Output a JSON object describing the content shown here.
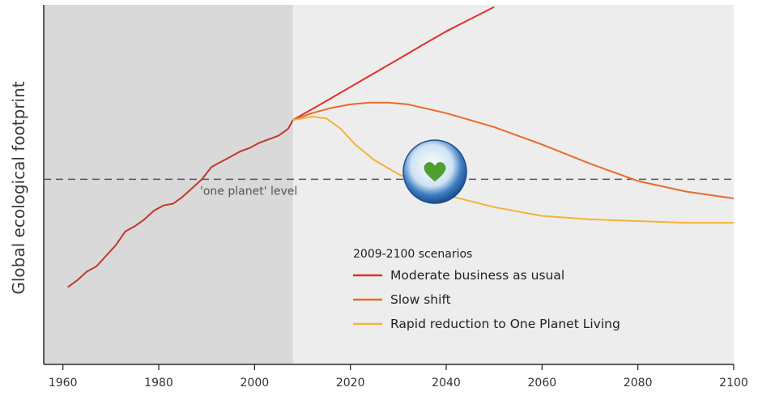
{
  "chart_data": {
    "type": "line",
    "title": "",
    "xlabel": "",
    "ylabel": "Global ecological footprint",
    "xlim": [
      1956,
      2100
    ],
    "ylim": [
      0,
      100
    ],
    "x_ticks": [
      1960,
      1980,
      2000,
      2020,
      2040,
      2060,
      2080,
      2100
    ],
    "x_tick_labels": [
      "1960",
      "1980",
      "2000",
      "2020",
      "2040",
      "2060",
      "2080",
      "2100"
    ],
    "historical_shaded_range": [
      1956,
      2008
    ],
    "colors": {
      "historical_shade": "#d9d9d9",
      "projection_background": "#ededed",
      "history_line": "#c0392b",
      "moderate": "#e03127",
      "slow_shift": "#ea6a2a",
      "rapid": "#f5b335",
      "threshold": "#555555"
    },
    "threshold": {
      "label": "'one planet' level",
      "value": 52
    },
    "history": {
      "x": [
        1961,
        1963,
        1965,
        1967,
        1969,
        1971,
        1973,
        1975,
        1977,
        1979,
        1981,
        1983,
        1985,
        1987,
        1989,
        1991,
        1993,
        1995,
        1997,
        1999,
        2001,
        2003,
        2005,
        2007,
        2008
      ],
      "y": [
        21,
        23,
        25.5,
        27,
        30,
        33,
        37,
        38.5,
        40.5,
        43,
        44.5,
        45,
        47,
        49.5,
        52,
        55.5,
        57,
        58.5,
        60,
        61,
        62.5,
        63.5,
        64.5,
        66.5,
        69
      ]
    },
    "legend": {
      "title": "2009-2100 scenarios",
      "position": "bottom-center"
    },
    "series": [
      {
        "name": "Moderate business as usual",
        "x": [
          2008,
          2015,
          2020,
          2025,
          2030,
          2035,
          2040,
          2045,
          2050
        ],
        "y": [
          69,
          74.5,
          78.5,
          82.5,
          86.5,
          90.5,
          94.5,
          98,
          101.5
        ]
      },
      {
        "name": "Slow shift",
        "x": [
          2008,
          2012,
          2016,
          2020,
          2024,
          2028,
          2032,
          2040,
          2050,
          2060,
          2070,
          2080,
          2090,
          2100
        ],
        "y": [
          69,
          71,
          72.5,
          73.5,
          74,
          74,
          73.5,
          71,
          67,
          62,
          56.5,
          51.5,
          48.5,
          46.5
        ]
      },
      {
        "name": "Rapid reduction to One Planet Living",
        "x": [
          2008,
          2012,
          2015,
          2018,
          2021,
          2025,
          2030,
          2035,
          2040,
          2050,
          2060,
          2070,
          2080,
          2090,
          2100
        ],
        "y": [
          69,
          70,
          69.5,
          66.5,
          62,
          57.5,
          53.5,
          50.5,
          47.5,
          44,
          41.5,
          40.5,
          40,
          39.5,
          39.5
        ]
      }
    ]
  },
  "icons": {
    "marker": "heart-globe-icon"
  }
}
